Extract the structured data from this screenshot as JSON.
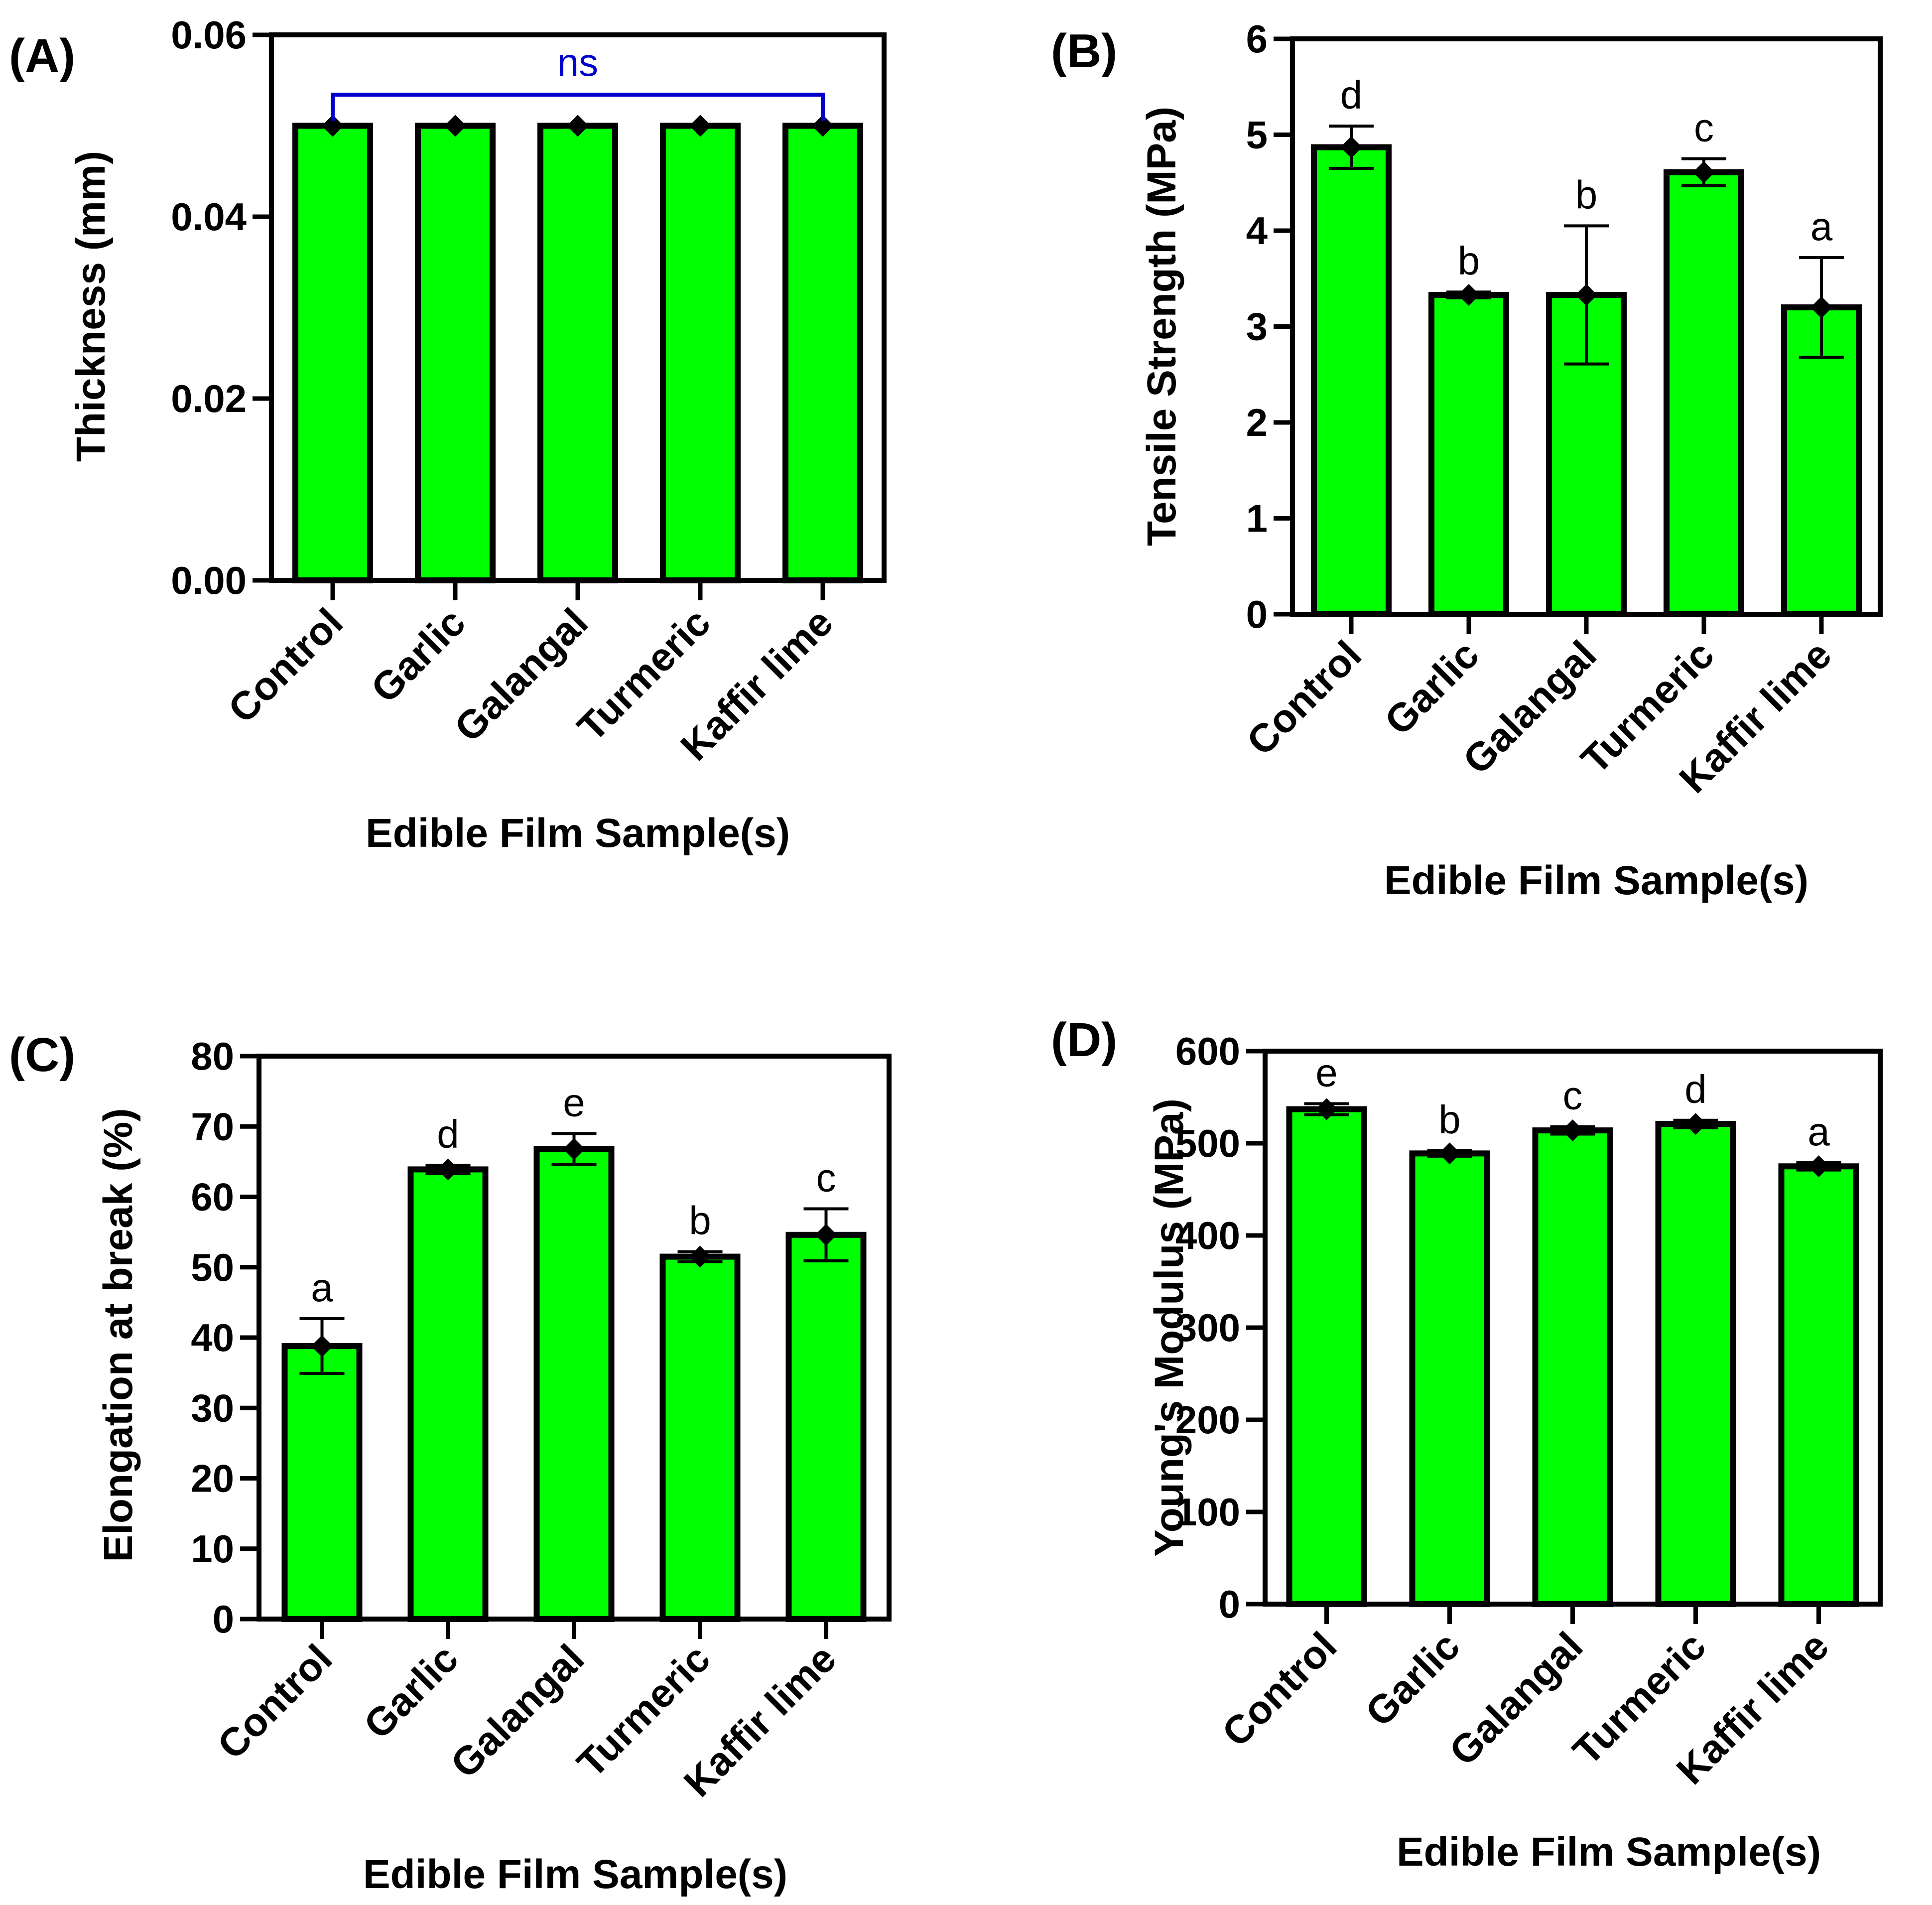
{
  "colors": {
    "bar_fill": "#00ff00",
    "outline": "#000000",
    "ns_bracket": "#0000cc"
  },
  "chart_data": [
    {
      "id": "A",
      "type": "bar",
      "panel_label": "(A)",
      "categories": [
        "Control",
        "Garlic",
        "Galangal",
        "Turmeric",
        "Kaffir lime"
      ],
      "values": [
        0.05,
        0.05,
        0.05,
        0.05,
        0.05
      ],
      "errors": [
        0.0,
        0.0,
        0.0,
        0.0,
        0.0
      ],
      "letters": [
        "",
        "",
        "",
        "",
        ""
      ],
      "bracket_label": "ns",
      "ylabel": "Thickness (mm)",
      "xlabel": "Edible Film Sample(s)",
      "ylim": [
        0,
        0.06
      ],
      "yticks": [
        0,
        0.02,
        0.04,
        0.06
      ],
      "ytick_labels": [
        "0.00",
        "0.02",
        "0.04",
        "0.06"
      ]
    },
    {
      "id": "B",
      "type": "bar",
      "panel_label": "(B)",
      "categories": [
        "Control",
        "Garlic",
        "Galangal",
        "Turmeric",
        "Kaffir lime"
      ],
      "values": [
        4.87,
        3.33,
        3.33,
        4.61,
        3.2
      ],
      "errors": [
        0.22,
        0.03,
        0.72,
        0.14,
        0.52
      ],
      "letters": [
        "d",
        "b",
        "b",
        "c",
        "a"
      ],
      "ylabel": "Tensile Strength (MPa)",
      "xlabel": "Edible Film Sample(s)",
      "ylim": [
        0,
        6
      ],
      "yticks": [
        0,
        1,
        2,
        3,
        4,
        5,
        6
      ],
      "ytick_labels": [
        "0",
        "1",
        "2",
        "3",
        "4",
        "5",
        "6"
      ]
    },
    {
      "id": "C",
      "type": "bar",
      "panel_label": "(C)",
      "categories": [
        "Control",
        "Garlic",
        "Galangal",
        "Turmeric",
        "Kaffir lime"
      ],
      "values": [
        38.8,
        63.9,
        66.8,
        51.5,
        54.6
      ],
      "errors": [
        3.9,
        0.6,
        2.2,
        0.7,
        3.7
      ],
      "letters": [
        "a",
        "d",
        "e",
        "b",
        "c"
      ],
      "ylabel": "Elongation at break (%)",
      "xlabel": "Edible Film Sample(s)",
      "ylim": [
        0,
        80
      ],
      "yticks": [
        0,
        10,
        20,
        30,
        40,
        50,
        60,
        70,
        80
      ],
      "ytick_labels": [
        "0",
        "10",
        "20",
        "30",
        "40",
        "50",
        "60",
        "70",
        "80"
      ]
    },
    {
      "id": "D",
      "type": "bar",
      "panel_label": "(D)",
      "categories": [
        "Control",
        "Garlic",
        "Galangal",
        "Turmeric",
        "Kaffir lime"
      ],
      "values": [
        537,
        489,
        514,
        521,
        475
      ],
      "errors": [
        6,
        3,
        4,
        4,
        4
      ],
      "letters": [
        "e",
        "b",
        "c",
        "d",
        "a"
      ],
      "ylabel": "Young's Modulus (MPa)",
      "xlabel": "Edible Film Sample(s)",
      "ylim": [
        0,
        600
      ],
      "yticks": [
        0,
        100,
        200,
        300,
        400,
        500,
        600
      ],
      "ytick_labels": [
        "0",
        "100",
        "200",
        "300",
        "400",
        "500",
        "600"
      ]
    }
  ]
}
